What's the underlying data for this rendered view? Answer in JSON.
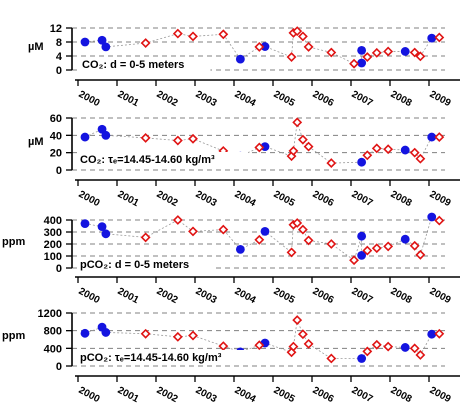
{
  "chart_data": [
    {
      "type": "scatter",
      "ylabel": "µM",
      "yticks": [
        0,
        4,
        8,
        12
      ],
      "ylim": [
        0,
        12
      ],
      "annotation": "CO₂: d = 0-5 meters",
      "xticks": [
        "2000",
        "2001",
        "2002",
        "2003",
        "2004",
        "2005",
        "2006",
        "2007",
        "2008",
        "2009"
      ],
      "xlim": [
        2000,
        2009.5
      ],
      "grid": true,
      "series": [
        {
          "marker": "circle",
          "color": "#1414e0",
          "points": [
            {
              "x": 2000.0,
              "y": 8.0
            },
            {
              "x": 2000.45,
              "y": 8.5
            },
            {
              "x": 2000.55,
              "y": 6.6
            },
            {
              "x": 2004.1,
              "y": 3.1
            },
            {
              "x": 2004.75,
              "y": 6.7
            },
            {
              "x": 2007.3,
              "y": 2.0
            },
            {
              "x": 2007.3,
              "y": 5.6
            },
            {
              "x": 2008.45,
              "y": 5.3
            },
            {
              "x": 2009.15,
              "y": 9.1
            }
          ]
        },
        {
          "marker": "diamond",
          "color": "#e01414",
          "points": [
            {
              "x": 2001.6,
              "y": 7.7
            },
            {
              "x": 2002.45,
              "y": 10.4
            },
            {
              "x": 2002.85,
              "y": 9.6
            },
            {
              "x": 2003.65,
              "y": 10.2
            },
            {
              "x": 2004.6,
              "y": 6.6
            },
            {
              "x": 2005.45,
              "y": 3.7
            },
            {
              "x": 2005.5,
              "y": 10.6
            },
            {
              "x": 2005.6,
              "y": 11.1
            },
            {
              "x": 2005.75,
              "y": 9.6
            },
            {
              "x": 2005.9,
              "y": 6.6
            },
            {
              "x": 2006.5,
              "y": 5.0
            },
            {
              "x": 2007.1,
              "y": 1.8
            },
            {
              "x": 2007.45,
              "y": 3.7
            },
            {
              "x": 2007.7,
              "y": 4.9
            },
            {
              "x": 2008.0,
              "y": 5.3
            },
            {
              "x": 2008.7,
              "y": 5.0
            },
            {
              "x": 2008.85,
              "y": 3.9
            },
            {
              "x": 2009.35,
              "y": 9.3
            }
          ]
        }
      ]
    },
    {
      "type": "scatter",
      "ylabel": "µM",
      "yticks": [
        0,
        20,
        40,
        60
      ],
      "ylim": [
        0,
        60
      ],
      "annotation": "CO₂: τₑ=14.45-14.60 kg/m³",
      "xticks": [
        "2000",
        "2001",
        "2002",
        "2003",
        "2004",
        "2005",
        "2006",
        "2007",
        "2008",
        "2009"
      ],
      "xlim": [
        2000,
        2009.5
      ],
      "grid": true,
      "series": [
        {
          "marker": "circle",
          "color": "#1414e0",
          "points": [
            {
              "x": 2000.0,
              "y": 38
            },
            {
              "x": 2000.45,
              "y": 47
            },
            {
              "x": 2000.55,
              "y": 40
            },
            {
              "x": 2004.1,
              "y": 16
            },
            {
              "x": 2004.75,
              "y": 27
            },
            {
              "x": 2007.3,
              "y": 9
            },
            {
              "x": 2008.45,
              "y": 23
            },
            {
              "x": 2009.15,
              "y": 38
            }
          ]
        },
        {
          "marker": "diamond",
          "color": "#e01414",
          "points": [
            {
              "x": 2001.6,
              "y": 37
            },
            {
              "x": 2002.45,
              "y": 34
            },
            {
              "x": 2002.85,
              "y": 36
            },
            {
              "x": 2003.65,
              "y": 22
            },
            {
              "x": 2004.6,
              "y": 26
            },
            {
              "x": 2005.45,
              "y": 16
            },
            {
              "x": 2005.5,
              "y": 22
            },
            {
              "x": 2005.6,
              "y": 55
            },
            {
              "x": 2005.75,
              "y": 35
            },
            {
              "x": 2005.9,
              "y": 27
            },
            {
              "x": 2006.5,
              "y": 8
            },
            {
              "x": 2007.45,
              "y": 17
            },
            {
              "x": 2007.7,
              "y": 25
            },
            {
              "x": 2008.0,
              "y": 24
            },
            {
              "x": 2008.7,
              "y": 20
            },
            {
              "x": 2008.85,
              "y": 13
            },
            {
              "x": 2009.35,
              "y": 38
            }
          ]
        }
      ]
    },
    {
      "type": "scatter",
      "ylabel": "ppm",
      "yticks": [
        0,
        100,
        200,
        300,
        400
      ],
      "ylim": [
        0,
        400
      ],
      "annotation": "pCO₂: d = 0-5 meters",
      "xticks": [
        "2000",
        "2001",
        "2002",
        "2003",
        "2004",
        "2005",
        "2006",
        "2007",
        "2008",
        "2009"
      ],
      "xlim": [
        2000,
        2009.5
      ],
      "grid": true,
      "series": [
        {
          "marker": "circle",
          "color": "#1414e0",
          "points": [
            {
              "x": 2000.0,
              "y": 370
            },
            {
              "x": 2000.45,
              "y": 345
            },
            {
              "x": 2000.55,
              "y": 285
            },
            {
              "x": 2004.1,
              "y": 155
            },
            {
              "x": 2004.75,
              "y": 305
            },
            {
              "x": 2007.3,
              "y": 265
            },
            {
              "x": 2007.3,
              "y": 105
            },
            {
              "x": 2008.45,
              "y": 240
            },
            {
              "x": 2009.15,
              "y": 425
            }
          ]
        },
        {
          "marker": "diamond",
          "color": "#e01414",
          "points": [
            {
              "x": 2001.6,
              "y": 255
            },
            {
              "x": 2002.45,
              "y": 400
            },
            {
              "x": 2002.85,
              "y": 305
            },
            {
              "x": 2003.65,
              "y": 320
            },
            {
              "x": 2004.6,
              "y": 235
            },
            {
              "x": 2005.45,
              "y": 130
            },
            {
              "x": 2005.5,
              "y": 360
            },
            {
              "x": 2005.6,
              "y": 375
            },
            {
              "x": 2005.75,
              "y": 320
            },
            {
              "x": 2005.9,
              "y": 230
            },
            {
              "x": 2006.5,
              "y": 200
            },
            {
              "x": 2007.1,
              "y": 65
            },
            {
              "x": 2007.45,
              "y": 145
            },
            {
              "x": 2007.7,
              "y": 165
            },
            {
              "x": 2008.0,
              "y": 180
            },
            {
              "x": 2008.7,
              "y": 185
            },
            {
              "x": 2008.85,
              "y": 110
            },
            {
              "x": 2009.35,
              "y": 395
            }
          ]
        }
      ]
    },
    {
      "type": "scatter",
      "ylabel": "ppm",
      "yticks": [
        0,
        400,
        800,
        1200
      ],
      "ylim": [
        0,
        1200
      ],
      "annotation": "pCO₂: τₑ=14.45-14.60 kg/m³",
      "xticks": [
        "2000",
        "2001",
        "2002",
        "2003",
        "2004",
        "2005",
        "2006",
        "2007",
        "2008",
        "2009"
      ],
      "xlim": [
        2000,
        2009.5
      ],
      "grid": true,
      "series": [
        {
          "marker": "circle",
          "color": "#1414e0",
          "points": [
            {
              "x": 2000.0,
              "y": 740
            },
            {
              "x": 2000.45,
              "y": 880
            },
            {
              "x": 2000.55,
              "y": 760
            },
            {
              "x": 2004.1,
              "y": 320
            },
            {
              "x": 2004.75,
              "y": 520
            },
            {
              "x": 2007.3,
              "y": 170
            },
            {
              "x": 2008.45,
              "y": 420
            },
            {
              "x": 2009.15,
              "y": 720
            }
          ]
        },
        {
          "marker": "diamond",
          "color": "#e01414",
          "points": [
            {
              "x": 2001.6,
              "y": 730
            },
            {
              "x": 2002.45,
              "y": 660
            },
            {
              "x": 2002.85,
              "y": 690
            },
            {
              "x": 2003.65,
              "y": 450
            },
            {
              "x": 2004.6,
              "y": 470
            },
            {
              "x": 2005.45,
              "y": 310
            },
            {
              "x": 2005.5,
              "y": 440
            },
            {
              "x": 2005.6,
              "y": 1040
            },
            {
              "x": 2005.75,
              "y": 720
            },
            {
              "x": 2005.9,
              "y": 500
            },
            {
              "x": 2006.5,
              "y": 170
            },
            {
              "x": 2007.45,
              "y": 330
            },
            {
              "x": 2007.7,
              "y": 480
            },
            {
              "x": 2008.0,
              "y": 440
            },
            {
              "x": 2008.7,
              "y": 400
            },
            {
              "x": 2008.85,
              "y": 250
            },
            {
              "x": 2009.35,
              "y": 730
            }
          ]
        }
      ]
    }
  ]
}
